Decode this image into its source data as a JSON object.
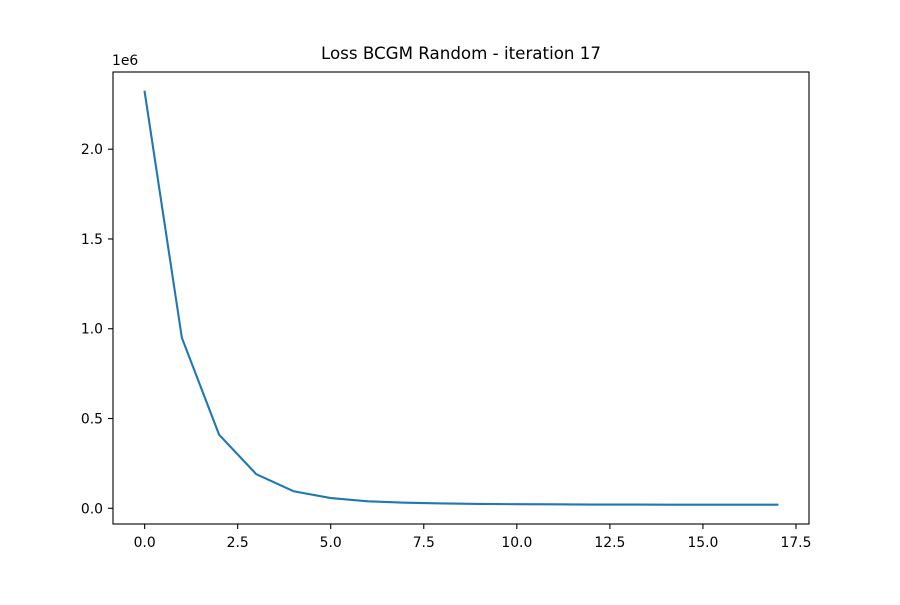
{
  "chart_data": {
    "type": "line",
    "title": "Loss BCGM Random - iteration 17",
    "xlabel": "",
    "ylabel": "",
    "y_offset_label": "1e6",
    "xlim": [
      -0.85,
      17.85
    ],
    "ylim": [
      -0.0875,
      2.43
    ],
    "x_ticks": [
      0,
      2.5,
      5,
      7.5,
      10,
      12.5,
      15,
      17.5
    ],
    "x_tick_labels": [
      "0.0",
      "2.5",
      "5.0",
      "7.5",
      "10.0",
      "12.5",
      "15.0",
      "17.5"
    ],
    "y_ticks": [
      0,
      0.5,
      1.0,
      1.5,
      2.0
    ],
    "y_tick_labels": [
      "0.0",
      "0.5",
      "1.0",
      "1.5",
      "2.0"
    ],
    "grid": false,
    "legend": "none",
    "series": [
      {
        "color": "#1f77b4",
        "x": [
          0,
          1,
          2,
          3,
          4,
          5,
          6,
          7,
          8,
          9,
          10,
          11,
          12,
          13,
          14,
          15,
          16,
          17
        ],
        "y": [
          2.32,
          0.95,
          0.41,
          0.19,
          0.095,
          0.057,
          0.039,
          0.031,
          0.027,
          0.024,
          0.023,
          0.022,
          0.021,
          0.021,
          0.02,
          0.02,
          0.02,
          0.02
        ]
      }
    ]
  }
}
